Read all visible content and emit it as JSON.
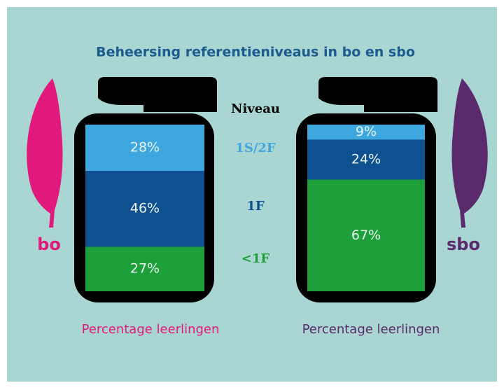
{
  "chart_data": {
    "type": "stacked-bar",
    "title": "Beheersing referentieniveaus in bo en sbo",
    "legend_title": "Niveau",
    "categories": [
      "bo",
      "sbo"
    ],
    "category_colors": [
      "#e2197c",
      "#5a2a6c"
    ],
    "xlabels": [
      "Percentage leerlingen",
      "Percentage leerlingen"
    ],
    "series": [
      {
        "name": "1S/2F",
        "color": "#3ea8de",
        "values": [
          28,
          9
        ],
        "value_labels": [
          "28%",
          "9%"
        ]
      },
      {
        "name": "1F",
        "color": "#0f5190",
        "values": [
          46,
          24
        ],
        "value_labels": [
          "46%",
          "24%"
        ]
      },
      {
        "name": "<1F",
        "color": "#1d9f3a",
        "values": [
          27,
          67
        ],
        "value_labels": [
          "27%",
          "67%"
        ]
      }
    ]
  }
}
